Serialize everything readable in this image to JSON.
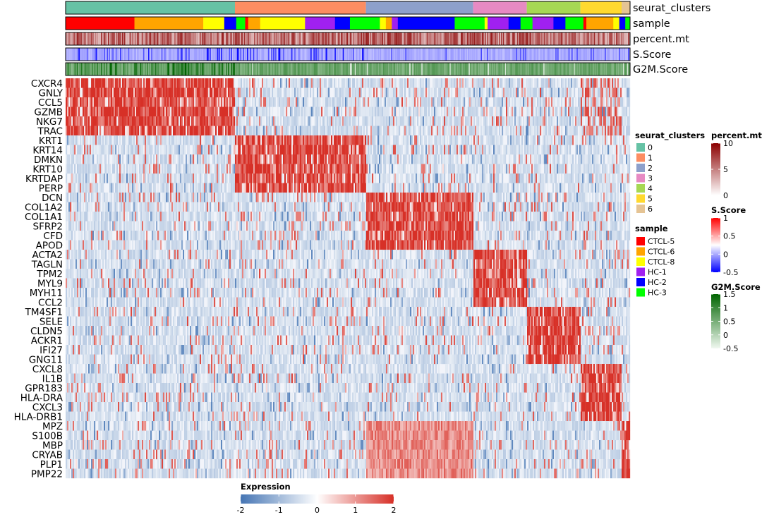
{
  "chart_data": {
    "type": "heatmap",
    "title": "",
    "xlabel": "",
    "ylabel": "",
    "annotation_tracks": [
      "seurat_clusters",
      "sample",
      "percent.mt",
      "S.Score",
      "G2M.Score"
    ],
    "clusters": [
      {
        "id": "0",
        "color": "#66C2A5",
        "cell_fraction": 0.3,
        "marker_genes": [
          "CXCR4",
          "GNLY",
          "CCL5",
          "GZMB",
          "NKG7",
          "TRAC"
        ]
      },
      {
        "id": "1",
        "color": "#FC8D62",
        "cell_fraction": 0.232,
        "marker_genes": [
          "KRT1",
          "KRT14",
          "DMKN",
          "KRT10",
          "KRTDAP",
          "PERP"
        ]
      },
      {
        "id": "2",
        "color": "#8DA0CB",
        "cell_fraction": 0.19,
        "marker_genes": [
          "DCN",
          "COL1A2",
          "COL1A1",
          "SFRP2",
          "CFD",
          "APOD"
        ]
      },
      {
        "id": "3",
        "color": "#E78AC3",
        "cell_fraction": 0.095,
        "marker_genes": [
          "ACTA2",
          "TAGLN",
          "TPM2",
          "MYL9",
          "MYH11",
          "CCL2"
        ]
      },
      {
        "id": "4",
        "color": "#A6D854",
        "cell_fraction": 0.095,
        "marker_genes": [
          "TM4SF1",
          "SELE",
          "CLDN5",
          "ACKR1",
          "IFI27",
          "GNG11"
        ]
      },
      {
        "id": "5",
        "color": "#FFD92F",
        "cell_fraction": 0.073,
        "marker_genes": [
          "CXCL8",
          "IL1B",
          "GPR183",
          "HLA-DRA",
          "CXCL3",
          "HLA-DRB1"
        ]
      },
      {
        "id": "6",
        "color": "#E5C494",
        "cell_fraction": 0.015,
        "marker_genes": [
          "MPZ",
          "S100B",
          "MBP",
          "CRYAB",
          "PLP1",
          "PMP22"
        ]
      }
    ],
    "genes": [
      "CXCR4",
      "GNLY",
      "CCL5",
      "GZMB",
      "NKG7",
      "TRAC",
      "KRT1",
      "KRT14",
      "DMKN",
      "KRT10",
      "KRTDAP",
      "PERP",
      "DCN",
      "COL1A2",
      "COL1A1",
      "SFRP2",
      "CFD",
      "APOD",
      "ACTA2",
      "TAGLN",
      "TPM2",
      "MYL9",
      "MYH11",
      "CCL2",
      "TM4SF1",
      "SELE",
      "CLDN5",
      "ACKR1",
      "IFI27",
      "GNG11",
      "CXCL8",
      "IL1B",
      "GPR183",
      "HLA-DRA",
      "CXCL3",
      "HLA-DRB1",
      "MPZ",
      "S100B",
      "MBP",
      "CRYAB",
      "PLP1",
      "PMP22"
    ],
    "samples": [
      {
        "name": "CTCL-5",
        "color": "#FF0000"
      },
      {
        "name": "CTCL-6",
        "color": "#FFA500"
      },
      {
        "name": "CTCL-8",
        "color": "#FFFF00"
      },
      {
        "name": "HC-1",
        "color": "#A020F0"
      },
      {
        "name": "HC-2",
        "color": "#0000FF"
      },
      {
        "name": "HC-3",
        "color": "#00FF00"
      }
    ],
    "sample_track_segments": [
      {
        "sample": "CTCL-5",
        "fraction": 0.115
      },
      {
        "sample": "CTCL-6",
        "fraction": 0.115
      },
      {
        "sample": "CTCL-8",
        "fraction": 0.035
      },
      {
        "sample": "HC-1",
        "fraction": 0.0
      },
      {
        "sample": "HC-2",
        "fraction": 0.02
      },
      {
        "sample": "HC-3",
        "fraction": 0.015
      },
      {
        "sample": "CTCL-5",
        "fraction": 0.005
      },
      {
        "sample": "CTCL-6",
        "fraction": 0.02
      },
      {
        "sample": "CTCL-8",
        "fraction": 0.075
      },
      {
        "sample": "HC-1",
        "fraction": 0.05
      },
      {
        "sample": "HC-2",
        "fraction": 0.025
      },
      {
        "sample": "HC-3",
        "fraction": 0.05
      },
      {
        "sample": "CTCL-8",
        "fraction": 0.01
      },
      {
        "sample": "CTCL-6",
        "fraction": 0.01
      },
      {
        "sample": "HC-1",
        "fraction": 0.01
      },
      {
        "sample": "HC-2",
        "fraction": 0.095
      },
      {
        "sample": "HC-3",
        "fraction": 0.05
      },
      {
        "sample": "CTCL-8",
        "fraction": 0.005
      },
      {
        "sample": "HC-1",
        "fraction": 0.035
      },
      {
        "sample": "HC-2",
        "fraction": 0.02
      },
      {
        "sample": "HC-3",
        "fraction": 0.02
      },
      {
        "sample": "HC-1",
        "fraction": 0.035
      },
      {
        "sample": "HC-2",
        "fraction": 0.02
      },
      {
        "sample": "HC-3",
        "fraction": 0.03
      },
      {
        "sample": "CTCL-5",
        "fraction": 0.005
      },
      {
        "sample": "CTCL-6",
        "fraction": 0.045
      },
      {
        "sample": "CTCL-8",
        "fraction": 0.01
      },
      {
        "sample": "HC-2",
        "fraction": 0.01
      },
      {
        "sample": "HC-3",
        "fraction": 0.008
      }
    ],
    "expression_scale": {
      "name": "Expression",
      "min": -2,
      "max": 2,
      "ticks": [
        -2,
        -1,
        0,
        1,
        2
      ],
      "colors": [
        "#4575B4",
        "#FFFFFF",
        "#D73027"
      ]
    },
    "continuous_legends": [
      {
        "name": "percent.mt",
        "min": 0,
        "max": 10,
        "ticks": [
          10,
          5,
          0
        ],
        "colors": [
          "#FFFFFF",
          "#8B0000"
        ]
      },
      {
        "name": "S.Score",
        "min": -0.5,
        "max": 1,
        "ticks": [
          1,
          0.5,
          0,
          -0.5
        ],
        "colors": [
          "#0000FF",
          "#FFFFFF",
          "#FF0000"
        ]
      },
      {
        "name": "G2M.Score",
        "min": -0.5,
        "max": 1.5,
        "ticks": [
          1.5,
          1,
          0.5,
          0,
          -0.5
        ],
        "colors": [
          "#F0F8F0",
          "#006400"
        ]
      }
    ],
    "legend_placement": "right",
    "colorbar_placement": "bottom",
    "grid": false
  }
}
